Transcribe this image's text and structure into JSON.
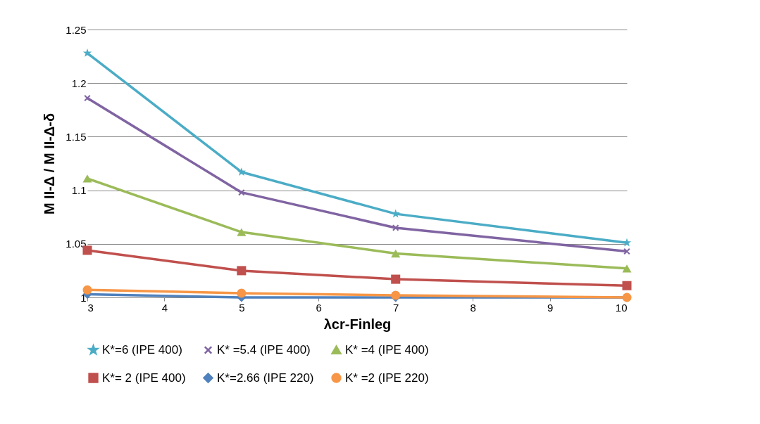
{
  "chart_data": {
    "type": "line",
    "xlabel": "λcr-Finleg",
    "ylabel": "M II-Δ / M II-Δ-δ",
    "x": [
      3,
      5,
      7,
      10
    ],
    "xlim": [
      3,
      10
    ],
    "xticks": [
      3,
      4,
      5,
      6,
      7,
      8,
      9,
      10
    ],
    "ylim": [
      1,
      1.25
    ],
    "yticks": [
      1,
      1.05,
      1.1,
      1.15,
      1.2,
      1.25
    ],
    "grid": "y",
    "legend": "bottom",
    "series": [
      {
        "name": "K*=6  (IPE 400)",
        "color": "#4bacc6",
        "marker": "star",
        "values": [
          1.228,
          1.117,
          1.078,
          1.051
        ]
      },
      {
        "name": "K* =5.4  (IPE 400)",
        "color": "#8064a2",
        "marker": "cross",
        "values": [
          1.186,
          1.098,
          1.065,
          1.043
        ]
      },
      {
        "name": "K* =4 (IPE 400)",
        "color": "#9bbb59",
        "marker": "triangle",
        "values": [
          1.111,
          1.061,
          1.041,
          1.027
        ]
      },
      {
        "name": "K*= 2 (IPE 400)",
        "color": "#c0504d",
        "marker": "square",
        "values": [
          1.044,
          1.025,
          1.017,
          1.011
        ]
      },
      {
        "name": "K*=2.66 (IPE 220)",
        "color": "#4f81bd",
        "marker": "diamond",
        "values": [
          1.003,
          1.0,
          1.0,
          1.0
        ]
      },
      {
        "name": "K* =2  (IPE 220)",
        "color": "#f79646",
        "marker": "circle",
        "values": [
          1.007,
          1.004,
          1.002,
          1.0
        ]
      }
    ]
  }
}
